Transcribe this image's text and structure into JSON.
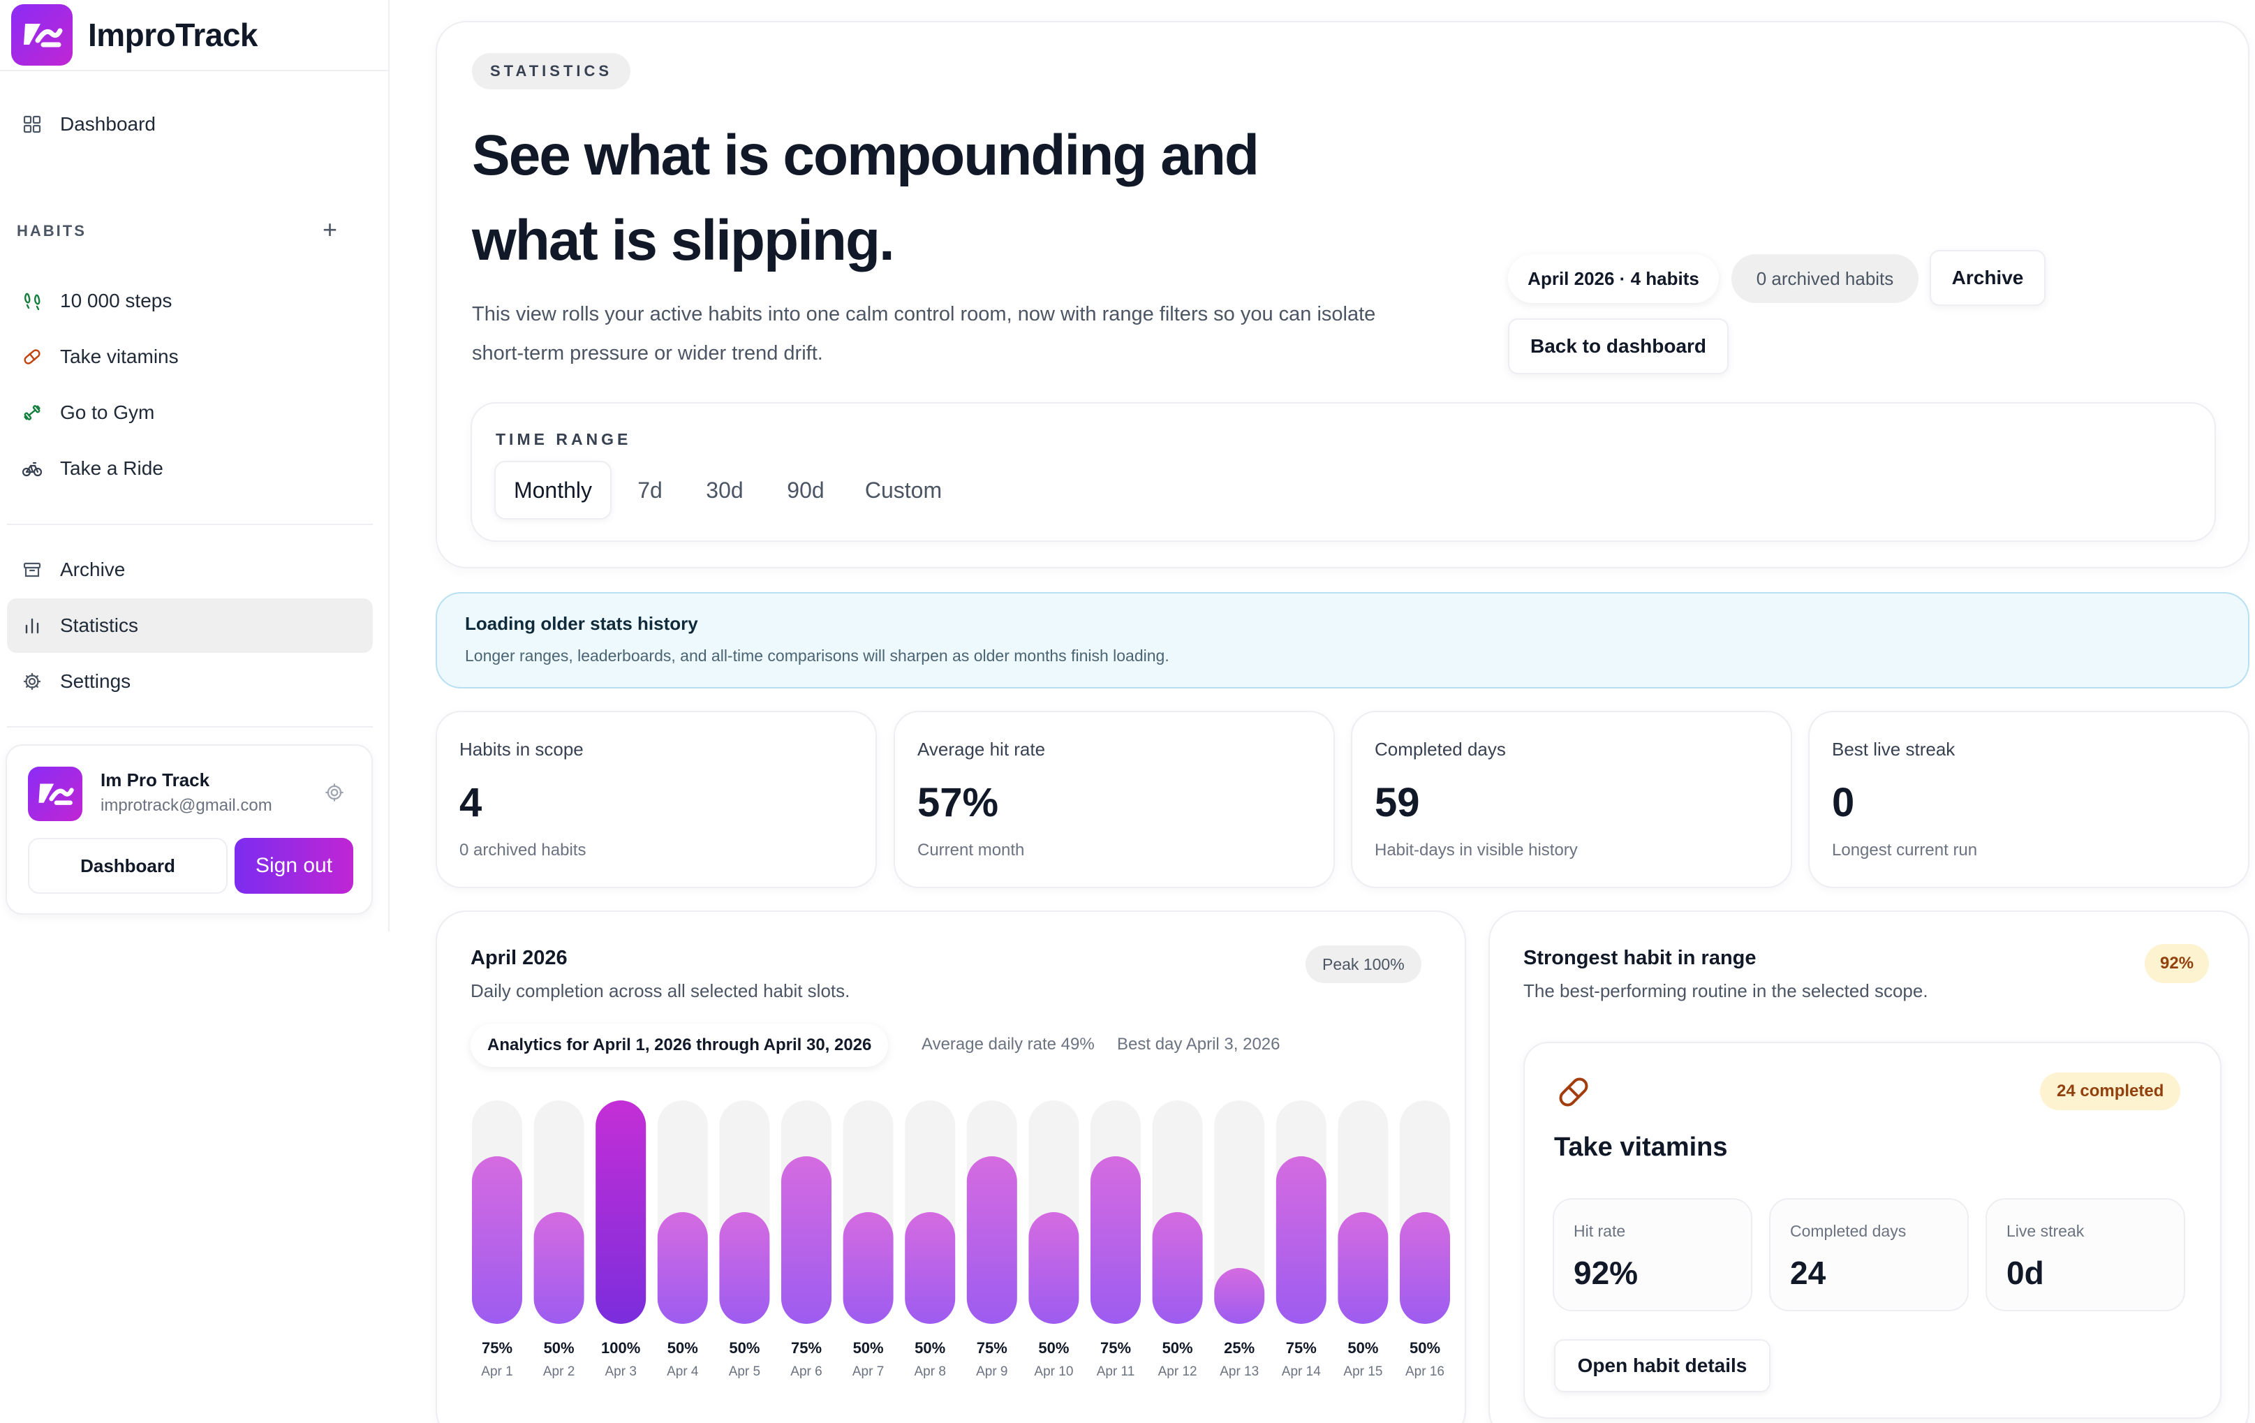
{
  "app": {
    "name": "ImproTrack"
  },
  "sidebar": {
    "dashboard": "Dashboard",
    "habits_label": "HABITS",
    "add_symbol": "+",
    "habits": [
      {
        "label": "10 000 steps",
        "icon": "footsteps-icon",
        "color": "#15803d"
      },
      {
        "label": "Take vitamins",
        "icon": "pill-icon",
        "color": "#c2410c"
      },
      {
        "label": "Go to Gym",
        "icon": "dumbbell-icon",
        "color": "#15803d"
      },
      {
        "label": "Take a Ride",
        "icon": "bike-icon",
        "color": "#374151"
      }
    ],
    "archive": "Archive",
    "statistics": "Statistics",
    "settings": "Settings"
  },
  "user": {
    "name": "Im Pro Track",
    "email": "improtrack@gmail.com",
    "dashboard_button": "Dashboard",
    "signout_button": "Sign out"
  },
  "hero": {
    "eyebrow": "STATISTICS",
    "title": "See what is compounding and what is slipping.",
    "description": "This view rolls your active habits into one calm control room, now with range filters so you can isolate short-term pressure or wider trend drift.",
    "month_chip": "April 2026 · 4 habits",
    "archived_chip": "0 archived habits",
    "archive_button": "Archive",
    "back_button": "Back to dashboard",
    "time_range_label": "TIME RANGE",
    "ranges": [
      "Monthly",
      "7d",
      "30d",
      "90d",
      "Custom"
    ],
    "active_range": "Monthly"
  },
  "banner": {
    "title": "Loading older stats history",
    "text": "Longer ranges, leaderboards, and all-time comparisons will sharpen as older months finish loading."
  },
  "metrics": [
    {
      "label": "Habits in scope",
      "value": "4",
      "sub": "0 archived habits"
    },
    {
      "label": "Average hit rate",
      "value": "57%",
      "sub": "Current month"
    },
    {
      "label": "Completed days",
      "value": "59",
      "sub": "Habit-days in visible history"
    },
    {
      "label": "Best live streak",
      "value": "0",
      "sub": "Longest current run"
    }
  ],
  "chart_card": {
    "title": "April 2026",
    "subtitle": "Daily completion across all selected habit slots.",
    "peak": "Peak 100%",
    "analytics": "Analytics for April 1, 2026 through April 30, 2026",
    "avg_rate": "Average daily rate 49%",
    "best_day": "Best day April 3, 2026"
  },
  "chart_data": {
    "type": "bar",
    "categories": [
      "Apr 1",
      "Apr 2",
      "Apr 3",
      "Apr 4",
      "Apr 5",
      "Apr 6",
      "Apr 7",
      "Apr 8",
      "Apr 9",
      "Apr 10",
      "Apr 11",
      "Apr 12",
      "Apr 13",
      "Apr 14",
      "Apr 15",
      "Apr 16"
    ],
    "values": [
      75,
      50,
      100,
      50,
      50,
      75,
      50,
      50,
      75,
      50,
      75,
      50,
      25,
      75,
      50,
      50
    ],
    "value_labels": [
      "75%",
      "50%",
      "100%",
      "50%",
      "50%",
      "75%",
      "50%",
      "50%",
      "75%",
      "50%",
      "75%",
      "50%",
      "25%",
      "75%",
      "50%",
      "50%"
    ],
    "ylim": [
      0,
      100
    ],
    "colors": {
      "track": "#f3f3f3",
      "bar_top": "#d56be0",
      "bar_bottom": "#9d5cf0",
      "peak_top": "#c42fd6",
      "peak_bottom": "#7b2ddc"
    }
  },
  "strongest": {
    "title": "Strongest habit in range",
    "subtitle": "The best-performing routine in the selected scope.",
    "pct": "92%",
    "habit_icon": "pill-icon",
    "habit_name": "Take vitamins",
    "completed": "24 completed",
    "stats": [
      {
        "label": "Hit rate",
        "value": "92%"
      },
      {
        "label": "Completed days",
        "value": "24"
      },
      {
        "label": "Live streak",
        "value": "0d"
      }
    ],
    "open_button": "Open habit details"
  }
}
